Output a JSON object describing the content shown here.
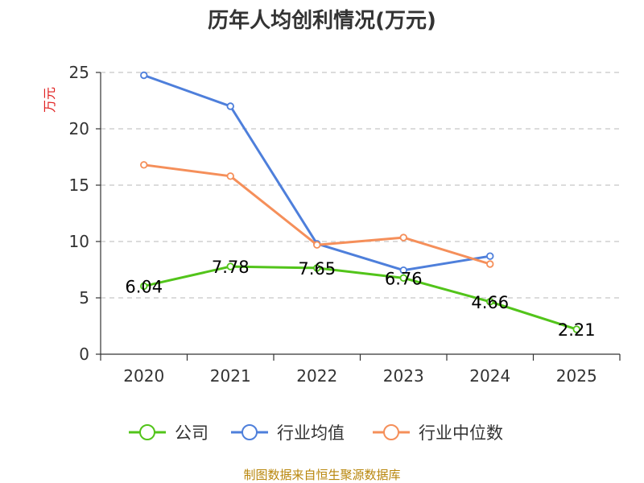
{
  "chart_data": {
    "type": "line",
    "title": "历年人均创利情况(万元)",
    "ylabel": "万元",
    "xlabel": "",
    "categories": [
      "2020",
      "2021",
      "2022",
      "2023",
      "2024",
      "2025"
    ],
    "ylim": [
      0,
      25
    ],
    "yticks": [
      0,
      5,
      10,
      15,
      20,
      25
    ],
    "grid": true,
    "legend_position": "bottom",
    "series": [
      {
        "name": "公司",
        "color": "#52c41a",
        "values": [
          6.04,
          7.78,
          7.65,
          6.76,
          4.66,
          2.21
        ],
        "labels": [
          "6.04",
          "7.78",
          "7.65",
          "6.76",
          "4.66",
          "2.21"
        ]
      },
      {
        "name": "行业均值",
        "color": "#4e7fdb",
        "values": [
          24.75,
          22.0,
          9.8,
          7.45,
          8.7,
          null
        ]
      },
      {
        "name": "行业中位数",
        "color": "#f58f5a",
        "values": [
          16.8,
          15.8,
          9.7,
          10.35,
          8.0,
          null
        ]
      }
    ],
    "source": "制图数据来自恒生聚源数据库"
  }
}
